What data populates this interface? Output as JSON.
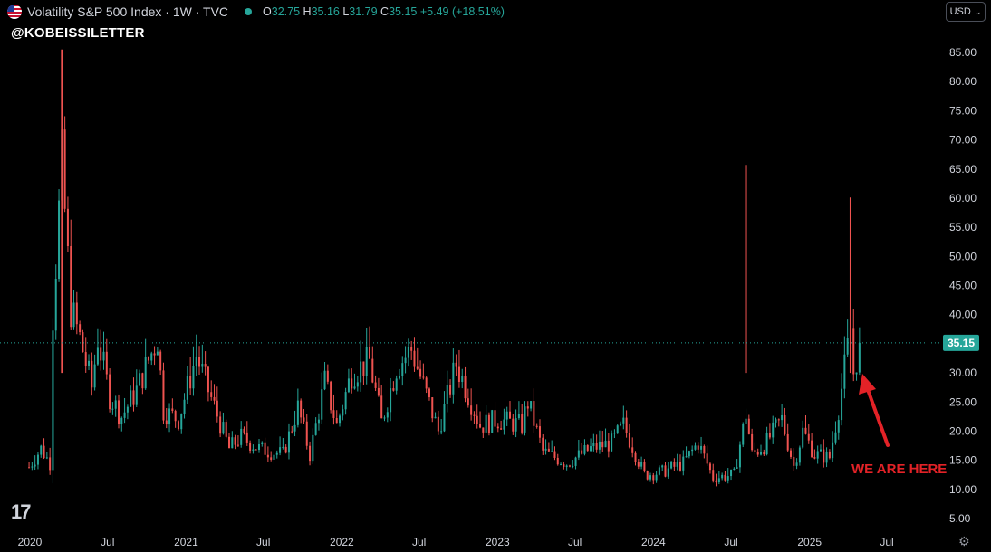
{
  "header": {
    "title": "Volatility S&P 500 Index · 1W · TVC",
    "o_label": "O",
    "o_value": "32.75",
    "h_label": "H",
    "h_value": "35.16",
    "l_label": "L",
    "l_value": "31.79",
    "c_label": "C",
    "c_value": "35.15",
    "change": "+5.49 (+18.51%)",
    "flag_icon": "us-flag-icon"
  },
  "watermark": "@KOBEISSILETTER",
  "currency": {
    "label": "USD"
  },
  "annotation": {
    "text": "WE ARE HERE",
    "color": "#e32227"
  },
  "colors": {
    "up": "#26a69a",
    "down": "#ef5350",
    "background": "#000000",
    "price_line": "#26a69a"
  },
  "chart_data": {
    "type": "line",
    "title": "Volatility S&P 500 Index",
    "interval": "1W",
    "yaxis_ticks": [
      5,
      10,
      15,
      20,
      25,
      30,
      35,
      40,
      45,
      50,
      55,
      60,
      65,
      70,
      75,
      80,
      85
    ],
    "yaxis_tick_labels": [
      "5.00",
      "10.00",
      "15.00",
      "20.00",
      "25.00",
      "30.00",
      "35.00",
      "40.00",
      "45.00",
      "50.00",
      "55.00",
      "60.00",
      "65.00",
      "70.00",
      "75.00",
      "80.00",
      "85.00"
    ],
    "ylim": [
      3,
      88
    ],
    "xaxis_ticks": [
      {
        "date": "2020-01-01",
        "label": "2020"
      },
      {
        "date": "2020-07-01",
        "label": "Jul"
      },
      {
        "date": "2021-01-01",
        "label": "2021"
      },
      {
        "date": "2021-07-01",
        "label": "Jul"
      },
      {
        "date": "2022-01-01",
        "label": "2022"
      },
      {
        "date": "2022-07-01",
        "label": "Jul"
      },
      {
        "date": "2023-01-01",
        "label": "2023"
      },
      {
        "date": "2023-07-01",
        "label": "Jul"
      },
      {
        "date": "2024-01-01",
        "label": "2024"
      },
      {
        "date": "2024-07-01",
        "label": "Jul"
      },
      {
        "date": "2025-01-01",
        "label": "2025"
      },
      {
        "date": "2025-07-01",
        "label": "Jul"
      }
    ],
    "current_price": {
      "value": 35.15,
      "label": "35.15"
    },
    "series": [
      {
        "x": [
          "2019-12-30",
          "2020-01-27",
          "2020-02-17",
          "2020-02-24",
          "2020-03-09",
          "2020-03-16",
          "2020-04-06",
          "2020-04-27",
          "2020-05-25",
          "2020-06-08",
          "2020-07-06",
          "2020-08-03",
          "2020-09-07",
          "2020-10-26",
          "2020-11-09",
          "2020-12-14",
          "2021-01-25",
          "2021-02-22",
          "2021-04-12",
          "2021-05-10",
          "2021-06-21",
          "2021-08-16",
          "2021-09-20",
          "2021-10-18",
          "2021-11-22",
          "2021-12-20",
          "2022-01-24",
          "2022-03-07",
          "2022-04-04",
          "2022-05-09",
          "2022-06-13",
          "2022-08-15",
          "2022-09-26",
          "2022-10-10",
          "2022-11-21",
          "2023-01-02",
          "2023-02-27",
          "2023-03-13",
          "2023-04-17",
          "2023-06-12",
          "2023-08-07",
          "2023-09-25",
          "2023-10-23",
          "2023-12-11",
          "2024-01-22",
          "2024-03-11",
          "2024-04-15",
          "2024-05-20",
          "2024-07-08",
          "2024-08-05",
          "2024-08-19",
          "2024-09-16",
          "2024-10-28",
          "2024-11-25",
          "2024-12-16",
          "2025-01-13",
          "2025-02-17",
          "2025-03-10",
          "2025-04-07",
          "2025-04-14",
          "2025-04-28"
        ],
        "values": [
          13.8,
          17.0,
          14.5,
          40.0,
          57.8,
          66.0,
          41.0,
          36.0,
          27.5,
          36.0,
          26.0,
          22.5,
          27.0,
          36.0,
          23.5,
          22.0,
          33.0,
          27.0,
          17.0,
          19.0,
          17.0,
          16.0,
          24.0,
          16.0,
          28.5,
          21.0,
          30.0,
          32.0,
          21.5,
          31.0,
          34.0,
          20.0,
          31.5,
          29.0,
          21.0,
          22.0,
          21.0,
          25.0,
          16.5,
          14.5,
          17.0,
          18.0,
          21.0,
          12.5,
          13.0,
          14.5,
          18.0,
          12.0,
          12.5,
          23.0,
          16.0,
          17.5,
          22.0,
          14.0,
          20.0,
          16.0,
          15.5,
          24.0,
          37.5,
          30.0,
          35.15
        ]
      }
    ]
  }
}
